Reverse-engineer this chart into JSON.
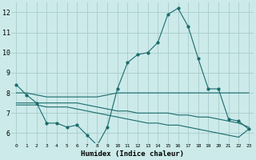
{
  "title": "",
  "xlabel": "Humidex (Indice chaleur)",
  "ylabel": "",
  "background_color": "#cceaea",
  "grid_color": "#aacccc",
  "line_color": "#1a6b6b",
  "xlim": [
    -0.5,
    23.5
  ],
  "ylim": [
    5.5,
    12.5
  ],
  "yticks": [
    6,
    7,
    8,
    9,
    10,
    11,
    12
  ],
  "xtick_labels": [
    "0",
    "1",
    "2",
    "3",
    "4",
    "5",
    "6",
    "7",
    "8",
    "9",
    "10",
    "11",
    "12",
    "13",
    "14",
    "15",
    "16",
    "17",
    "18",
    "19",
    "20",
    "21",
    "22",
    "23"
  ],
  "series": [
    {
      "x": [
        0,
        1,
        2,
        3,
        4,
        5,
        6,
        7,
        8,
        9,
        10,
        11,
        12,
        13,
        14,
        15,
        16,
        17,
        18,
        19,
        20,
        21,
        22,
        23
      ],
      "y": [
        8.4,
        7.9,
        7.5,
        6.5,
        6.5,
        6.3,
        6.4,
        5.9,
        5.4,
        6.3,
        8.2,
        9.5,
        9.9,
        10.0,
        10.5,
        11.9,
        12.2,
        11.3,
        9.7,
        8.2,
        8.2,
        6.7,
        6.6,
        6.2
      ],
      "marker": true
    },
    {
      "x": [
        0,
        1,
        2,
        3,
        4,
        5,
        6,
        7,
        8,
        9,
        10,
        11,
        12,
        13,
        14,
        15,
        16,
        17,
        18,
        19,
        20,
        21,
        22,
        23
      ],
      "y": [
        8.0,
        8.0,
        7.9,
        7.8,
        7.8,
        7.8,
        7.8,
        7.8,
        7.8,
        7.9,
        8.0,
        8.0,
        8.0,
        8.0,
        8.0,
        8.0,
        8.0,
        8.0,
        8.0,
        8.0,
        8.0,
        8.0,
        8.0,
        8.0
      ],
      "marker": false
    },
    {
      "x": [
        0,
        1,
        2,
        3,
        4,
        5,
        6,
        7,
        8,
        9,
        10,
        11,
        12,
        13,
        14,
        15,
        16,
        17,
        18,
        19,
        20,
        21,
        22,
        23
      ],
      "y": [
        7.5,
        7.5,
        7.5,
        7.5,
        7.5,
        7.5,
        7.5,
        7.4,
        7.3,
        7.2,
        7.1,
        7.1,
        7.0,
        7.0,
        7.0,
        7.0,
        6.9,
        6.9,
        6.8,
        6.8,
        6.7,
        6.6,
        6.5,
        6.3
      ],
      "marker": false
    },
    {
      "x": [
        0,
        1,
        2,
        3,
        4,
        5,
        6,
        7,
        8,
        9,
        10,
        11,
        12,
        13,
        14,
        15,
        16,
        17,
        18,
        19,
        20,
        21,
        22,
        23
      ],
      "y": [
        7.4,
        7.4,
        7.4,
        7.3,
        7.3,
        7.3,
        7.2,
        7.1,
        7.0,
        6.9,
        6.8,
        6.7,
        6.6,
        6.5,
        6.5,
        6.4,
        6.4,
        6.3,
        6.2,
        6.1,
        6.0,
        5.9,
        5.8,
        6.2
      ],
      "marker": false
    }
  ]
}
